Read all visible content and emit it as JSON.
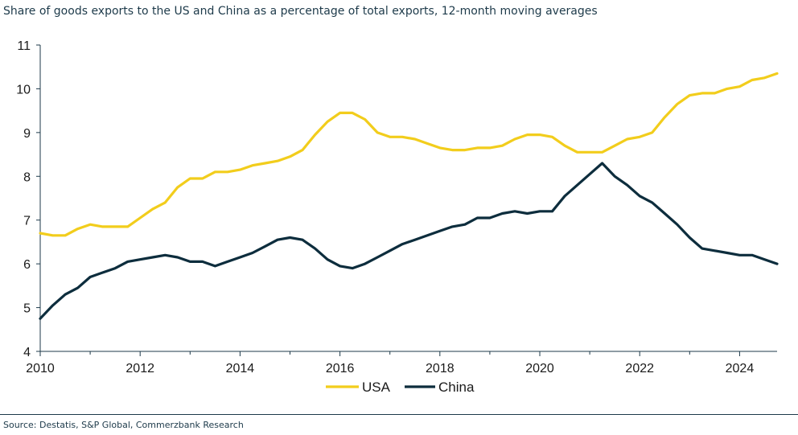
{
  "subtitle": "Share of goods exports to the US and China as a percentage of total exports, 12-month moving averages",
  "source": "Source: Destatis, S&P Global, Commerzbank Research",
  "chart_data": {
    "type": "line",
    "xlim": [
      2010.0,
      2024.75
    ],
    "ylim": [
      4,
      11
    ],
    "x_ticks": [
      "2010",
      "2012",
      "2014",
      "2016",
      "2018",
      "2020",
      "2022",
      "2024"
    ],
    "y_ticks": [
      "4",
      "5",
      "6",
      "7",
      "8",
      "9",
      "10",
      "11"
    ],
    "grid": false,
    "legend_position": "bottom-center",
    "series": [
      {
        "name": "USA",
        "color": "#f2cd1c",
        "points": [
          [
            2010.0,
            6.7
          ],
          [
            2010.25,
            6.65
          ],
          [
            2010.5,
            6.65
          ],
          [
            2010.75,
            6.8
          ],
          [
            2011.0,
            6.9
          ],
          [
            2011.25,
            6.85
          ],
          [
            2011.5,
            6.85
          ],
          [
            2011.75,
            6.85
          ],
          [
            2012.0,
            7.05
          ],
          [
            2012.25,
            7.25
          ],
          [
            2012.5,
            7.4
          ],
          [
            2012.75,
            7.75
          ],
          [
            2013.0,
            7.95
          ],
          [
            2013.25,
            7.95
          ],
          [
            2013.5,
            8.1
          ],
          [
            2013.75,
            8.1
          ],
          [
            2014.0,
            8.15
          ],
          [
            2014.25,
            8.25
          ],
          [
            2014.5,
            8.3
          ],
          [
            2014.75,
            8.35
          ],
          [
            2015.0,
            8.45
          ],
          [
            2015.25,
            8.6
          ],
          [
            2015.5,
            8.95
          ],
          [
            2015.75,
            9.25
          ],
          [
            2016.0,
            9.45
          ],
          [
            2016.25,
            9.45
          ],
          [
            2016.5,
            9.3
          ],
          [
            2016.75,
            9.0
          ],
          [
            2017.0,
            8.9
          ],
          [
            2017.25,
            8.9
          ],
          [
            2017.5,
            8.85
          ],
          [
            2017.75,
            8.75
          ],
          [
            2018.0,
            8.65
          ],
          [
            2018.25,
            8.6
          ],
          [
            2018.5,
            8.6
          ],
          [
            2018.75,
            8.65
          ],
          [
            2019.0,
            8.65
          ],
          [
            2019.25,
            8.7
          ],
          [
            2019.5,
            8.85
          ],
          [
            2019.75,
            8.95
          ],
          [
            2020.0,
            8.95
          ],
          [
            2020.25,
            8.9
          ],
          [
            2020.5,
            8.7
          ],
          [
            2020.75,
            8.55
          ],
          [
            2021.0,
            8.55
          ],
          [
            2021.25,
            8.55
          ],
          [
            2021.5,
            8.7
          ],
          [
            2021.75,
            8.85
          ],
          [
            2022.0,
            8.9
          ],
          [
            2022.25,
            9.0
          ],
          [
            2022.5,
            9.35
          ],
          [
            2022.75,
            9.65
          ],
          [
            2023.0,
            9.85
          ],
          [
            2023.25,
            9.9
          ],
          [
            2023.5,
            9.9
          ],
          [
            2023.75,
            10.0
          ],
          [
            2024.0,
            10.05
          ],
          [
            2024.25,
            10.2
          ],
          [
            2024.5,
            10.25
          ],
          [
            2024.75,
            10.35
          ]
        ]
      },
      {
        "name": "China",
        "color": "#0d2d3d",
        "points": [
          [
            2010.0,
            4.75
          ],
          [
            2010.25,
            5.05
          ],
          [
            2010.5,
            5.3
          ],
          [
            2010.75,
            5.45
          ],
          [
            2011.0,
            5.7
          ],
          [
            2011.25,
            5.8
          ],
          [
            2011.5,
            5.9
          ],
          [
            2011.75,
            6.05
          ],
          [
            2012.0,
            6.1
          ],
          [
            2012.25,
            6.15
          ],
          [
            2012.5,
            6.2
          ],
          [
            2012.75,
            6.15
          ],
          [
            2013.0,
            6.05
          ],
          [
            2013.25,
            6.05
          ],
          [
            2013.5,
            5.95
          ],
          [
            2013.75,
            6.05
          ],
          [
            2014.0,
            6.15
          ],
          [
            2014.25,
            6.25
          ],
          [
            2014.5,
            6.4
          ],
          [
            2014.75,
            6.55
          ],
          [
            2015.0,
            6.6
          ],
          [
            2015.25,
            6.55
          ],
          [
            2015.5,
            6.35
          ],
          [
            2015.75,
            6.1
          ],
          [
            2016.0,
            5.95
          ],
          [
            2016.25,
            5.9
          ],
          [
            2016.5,
            6.0
          ],
          [
            2016.75,
            6.15
          ],
          [
            2017.0,
            6.3
          ],
          [
            2017.25,
            6.45
          ],
          [
            2017.5,
            6.55
          ],
          [
            2017.75,
            6.65
          ],
          [
            2018.0,
            6.75
          ],
          [
            2018.25,
            6.85
          ],
          [
            2018.5,
            6.9
          ],
          [
            2018.75,
            7.05
          ],
          [
            2019.0,
            7.05
          ],
          [
            2019.25,
            7.15
          ],
          [
            2019.5,
            7.2
          ],
          [
            2019.75,
            7.15
          ],
          [
            2020.0,
            7.2
          ],
          [
            2020.25,
            7.2
          ],
          [
            2020.5,
            7.55
          ],
          [
            2020.75,
            7.8
          ],
          [
            2021.0,
            8.05
          ],
          [
            2021.25,
            8.3
          ],
          [
            2021.5,
            8.0
          ],
          [
            2021.75,
            7.8
          ],
          [
            2022.0,
            7.55
          ],
          [
            2022.25,
            7.4
          ],
          [
            2022.5,
            7.15
          ],
          [
            2022.75,
            6.9
          ],
          [
            2023.0,
            6.6
          ],
          [
            2023.25,
            6.35
          ],
          [
            2023.5,
            6.3
          ],
          [
            2023.75,
            6.25
          ],
          [
            2024.0,
            6.2
          ],
          [
            2024.25,
            6.2
          ],
          [
            2024.5,
            6.1
          ],
          [
            2024.75,
            6.0
          ]
        ]
      }
    ]
  }
}
